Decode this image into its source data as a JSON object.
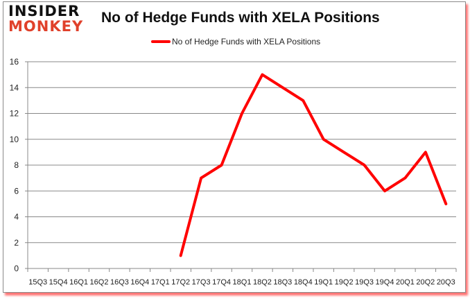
{
  "logo": {
    "line1": "INSIDER",
    "line2": "MONKEY"
  },
  "colors": {
    "series": "#ff0000",
    "grid": "#888888",
    "logo_red": "#e0412b",
    "shadow": "#ff0000"
  },
  "chart_data": {
    "type": "line",
    "title": "No of Hedge Funds with XELA Positions",
    "xlabel": "",
    "ylabel": "",
    "ylim": [
      0,
      16
    ],
    "yticks": [
      0,
      2,
      4,
      6,
      8,
      10,
      12,
      14,
      16
    ],
    "grid": true,
    "legend_position": "top",
    "categories": [
      "15Q3",
      "15Q4",
      "16Q1",
      "16Q2",
      "16Q3",
      "16Q4",
      "17Q1",
      "17Q2",
      "17Q3",
      "17Q4",
      "18Q1",
      "18Q2",
      "18Q3",
      "18Q4",
      "19Q1",
      "19Q2",
      "19Q3",
      "19Q4",
      "20Q1",
      "20Q2",
      "20Q3"
    ],
    "series": [
      {
        "name": "No of Hedge Funds with XELA Positions",
        "values": [
          null,
          null,
          null,
          null,
          null,
          null,
          null,
          1,
          7,
          8,
          12,
          15,
          14,
          13,
          10,
          9,
          8,
          6,
          7,
          9,
          5
        ]
      }
    ]
  }
}
